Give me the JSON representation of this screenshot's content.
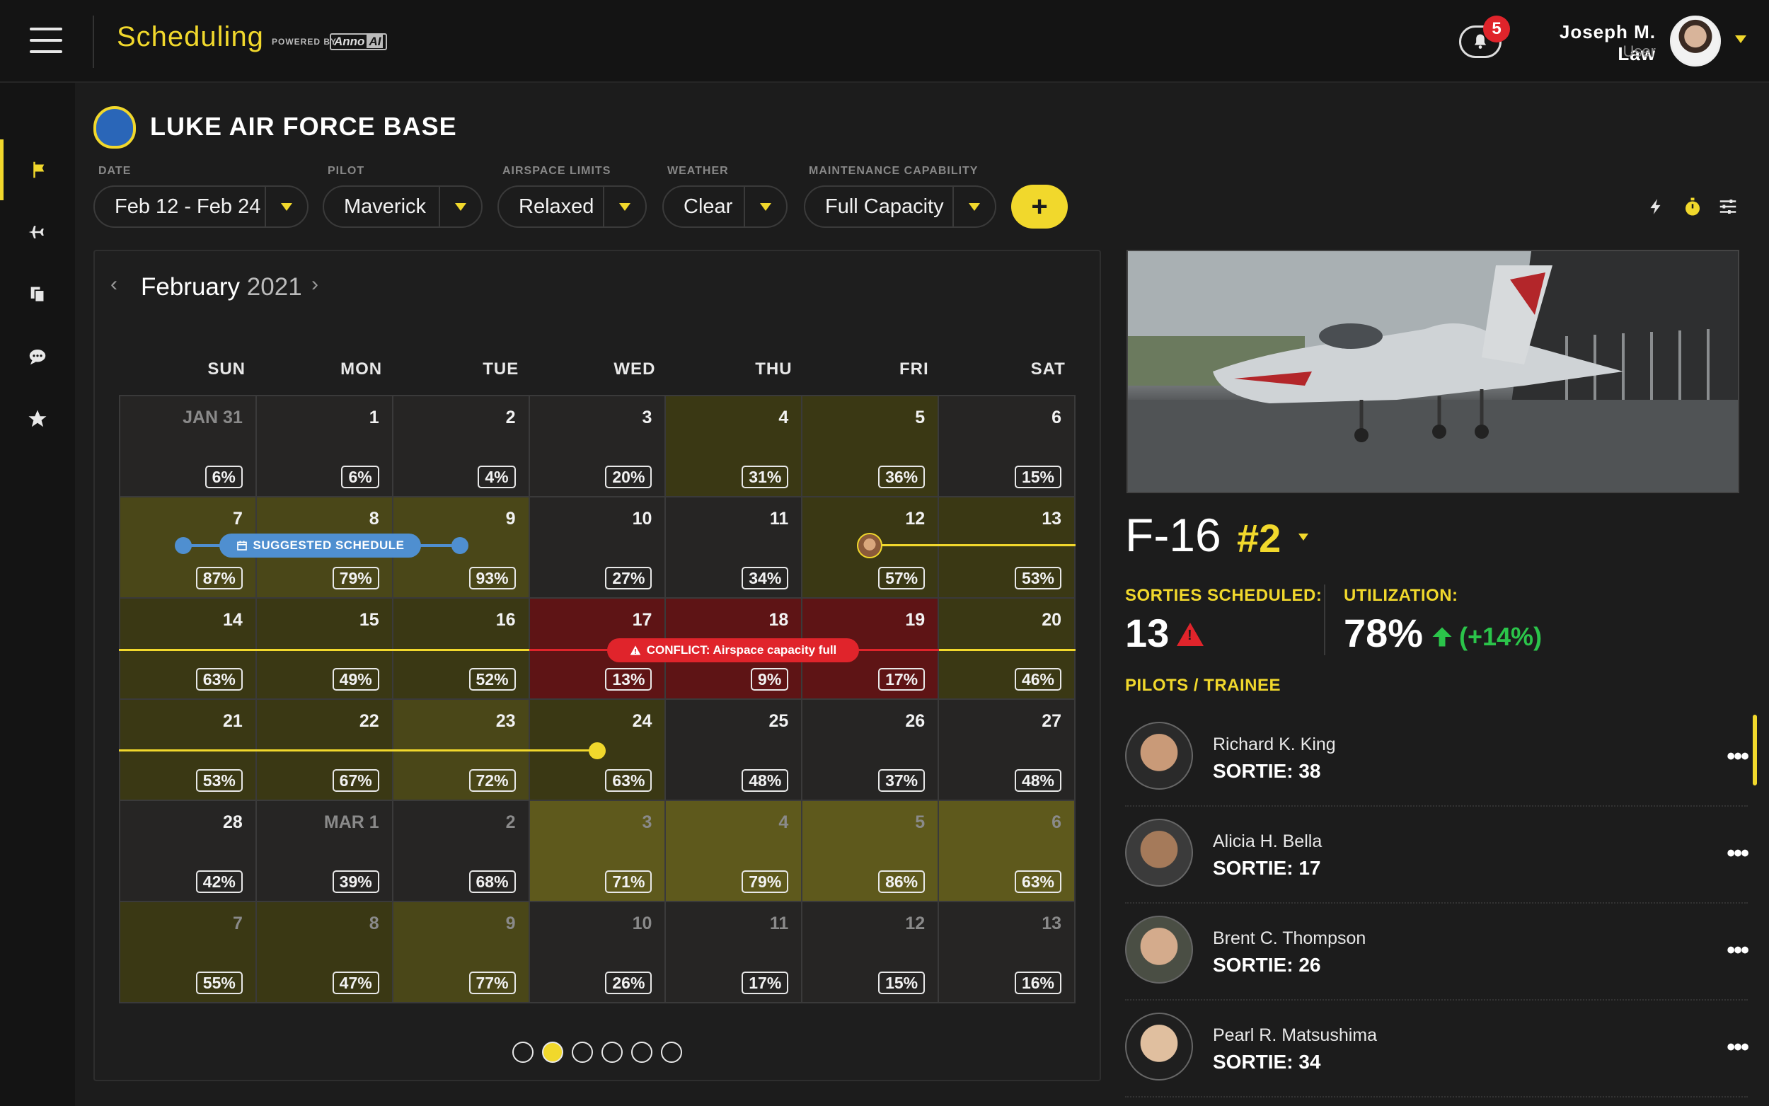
{
  "header": {
    "app_name": "Scheduling",
    "powered_by": "POWERED BY",
    "anno_logo_text": "Anno",
    "anno_logo_ai": "AI",
    "notifications_count": "5",
    "user_name": "Joseph M. Law",
    "user_role": "User"
  },
  "sidebar": {
    "items": [
      {
        "name": "flag-icon",
        "active": true
      },
      {
        "name": "plane-icon",
        "active": false
      },
      {
        "name": "documents-icon",
        "active": false
      },
      {
        "name": "chat-icon",
        "active": false
      },
      {
        "name": "star-icon",
        "active": false
      }
    ]
  },
  "base": {
    "title": "LUKE AIR FORCE BASE"
  },
  "filters": {
    "date": {
      "label": "DATE",
      "value": "Feb 12 - Feb 24"
    },
    "pilot": {
      "label": "PILOT",
      "value": "Maverick"
    },
    "airspace": {
      "label": "AIRSPACE LIMITS",
      "value": "Relaxed"
    },
    "weather": {
      "label": "WEATHER",
      "value": "Clear"
    },
    "maintenance": {
      "label": "MAINTENANCE CAPABILITY",
      "value": "Full Capacity"
    },
    "add_label": "+"
  },
  "toolbar": {
    "icons": [
      "lightning-icon",
      "timer-icon",
      "sliders-icon"
    ]
  },
  "calendar": {
    "month": "February",
    "year": "2021",
    "prev": "‹",
    "next": "›",
    "days": [
      "SUN",
      "MON",
      "TUE",
      "WED",
      "THU",
      "FRI",
      "SAT"
    ],
    "weeks": [
      [
        {
          "d": "JAN 31",
          "p": "6%"
        },
        {
          "d": "1",
          "p": "6%"
        },
        {
          "d": "2",
          "p": "4%"
        },
        {
          "d": "3",
          "p": "20%"
        },
        {
          "d": "4",
          "p": "31%"
        },
        {
          "d": "5",
          "p": "36%"
        },
        {
          "d": "6",
          "p": "15%"
        }
      ],
      [
        {
          "d": "7",
          "p": "87%"
        },
        {
          "d": "8",
          "p": "79%"
        },
        {
          "d": "9",
          "p": "93%"
        },
        {
          "d": "10",
          "p": "27%"
        },
        {
          "d": "11",
          "p": "34%"
        },
        {
          "d": "12",
          "p": "57%"
        },
        {
          "d": "13",
          "p": "53%"
        }
      ],
      [
        {
          "d": "14",
          "p": "63%"
        },
        {
          "d": "15",
          "p": "49%"
        },
        {
          "d": "16",
          "p": "52%"
        },
        {
          "d": "17",
          "p": "13%"
        },
        {
          "d": "18",
          "p": "9%"
        },
        {
          "d": "19",
          "p": "17%"
        },
        {
          "d": "20",
          "p": "46%"
        }
      ],
      [
        {
          "d": "21",
          "p": "53%"
        },
        {
          "d": "22",
          "p": "67%"
        },
        {
          "d": "23",
          "p": "72%"
        },
        {
          "d": "24",
          "p": "63%"
        },
        {
          "d": "25",
          "p": "48%"
        },
        {
          "d": "26",
          "p": "37%"
        },
        {
          "d": "27",
          "p": "48%"
        }
      ],
      [
        {
          "d": "28",
          "p": "42%"
        },
        {
          "d": "MAR 1",
          "p": "39%"
        },
        {
          "d": "2",
          "p": "68%"
        },
        {
          "d": "3",
          "p": "71%"
        },
        {
          "d": "4",
          "p": "79%"
        },
        {
          "d": "5",
          "p": "86%"
        },
        {
          "d": "6",
          "p": "63%"
        }
      ],
      [
        {
          "d": "7",
          "p": "55%"
        },
        {
          "d": "8",
          "p": "47%"
        },
        {
          "d": "9",
          "p": "77%"
        },
        {
          "d": "10",
          "p": "26%"
        },
        {
          "d": "11",
          "p": "17%"
        },
        {
          "d": "12",
          "p": "15%"
        },
        {
          "d": "13",
          "p": "16%"
        }
      ]
    ],
    "suggested_label": "SUGGESTED SCHEDULE",
    "conflict_label": "CONFLICT: Airspace capacity full",
    "pages": 6,
    "active_page": 2
  },
  "aircraft": {
    "type": "F-16",
    "number": "#2",
    "sorties_label": "SORTIES SCHEDULED:",
    "sorties_value": "13",
    "util_label": "UTILIZATION:",
    "util_value": "78%",
    "util_delta": "(+14%)",
    "pilots_label": "PILOTS / TRAINEE",
    "pilots": [
      {
        "name": "Richard K. King",
        "sortie": "SORTIE: 38"
      },
      {
        "name": "Alicia H. Bella",
        "sortie": "SORTIE: 17"
      },
      {
        "name": "Brent C. Thompson",
        "sortie": "SORTIE: 26"
      },
      {
        "name": "Pearl R. Matsushima",
        "sortie": "SORTIE: 34"
      }
    ],
    "more_label": "•••"
  }
}
